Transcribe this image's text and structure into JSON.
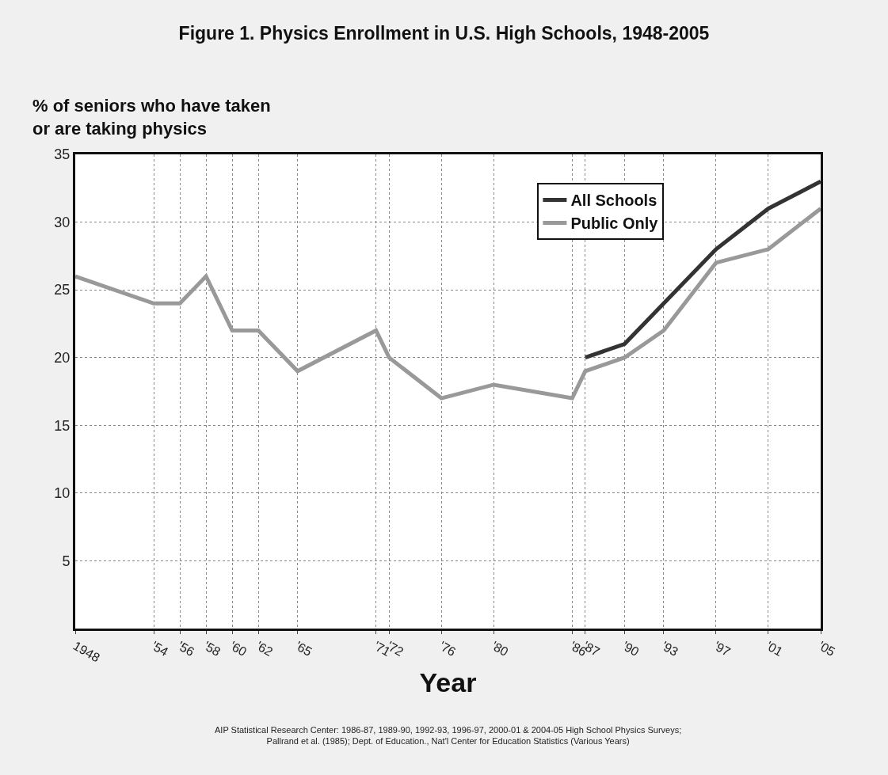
{
  "chart_data": {
    "type": "line",
    "title": "Figure 1. Physics Enrollment in U.S. High Schools, 1948-2005",
    "xlabel": "Year",
    "ylabel": "% of seniors who have taken\nor are taking physics",
    "annotations": [
      "AIP Statistical Research Center: 1986-87, 1989-90, 1992-93, 1996-97, 2000-01 & 2004-05 High School Physics Surveys;\nPallrand et al. (1985); Dept. of Education., Nat'l Center for Education Statistics (Various Years)"
    ],
    "series": [
      {
        "name": "All Schools",
        "color": "#333333",
        "x": [
          1987,
          1990,
          1993,
          1997,
          2001,
          2005
        ],
        "values": [
          20,
          21,
          24,
          28,
          31,
          33
        ]
      },
      {
        "name": "Public Only",
        "color": "#999999",
        "x": [
          1948,
          1954,
          1956,
          1958,
          1960,
          1962,
          1965,
          1971,
          1972,
          1976,
          1980,
          1986,
          1987,
          1990,
          1993,
          1997,
          2001,
          2005
        ],
        "values": [
          26,
          24,
          24,
          26,
          22,
          22,
          19,
          22,
          20,
          17,
          18,
          17,
          19,
          20,
          22,
          27,
          28,
          31
        ]
      }
    ],
    "xlim": [
      1948,
      2005
    ],
    "xticks": [
      1948,
      {
        "value": 1954,
        "label": "'54"
      },
      {
        "value": 1956,
        "label": "'56"
      },
      {
        "value": 1958,
        "label": "'58"
      },
      {
        "value": 1960,
        "label": "'60"
      },
      {
        "value": 1962,
        "label": "'62"
      },
      {
        "value": 1965,
        "label": "'65"
      },
      {
        "value": 1971,
        "label": "'71"
      },
      {
        "value": 1972,
        "label": "'72"
      },
      {
        "value": 1976,
        "label": "'76"
      },
      {
        "value": 1980,
        "label": "'80"
      },
      {
        "value": 1986,
        "label": "'86"
      },
      {
        "value": 1987,
        "label": "'87"
      },
      {
        "value": 1990,
        "label": "'90"
      },
      {
        "value": 1993,
        "label": "'93"
      },
      {
        "value": 1997,
        "label": "'97"
      },
      {
        "value": 2001,
        "label": "'01"
      },
      {
        "value": 2005,
        "label": "'05"
      }
    ],
    "ylim": [
      0,
      35
    ],
    "yticks": [
      5,
      10,
      15,
      20,
      25,
      30,
      35
    ],
    "grid": true,
    "legend": "top right",
    "marker": "none",
    "line_style": "solid"
  }
}
